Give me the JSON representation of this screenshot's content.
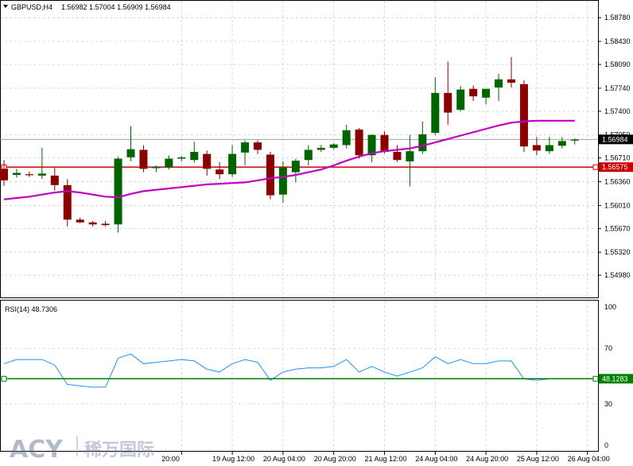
{
  "header": {
    "symbol": "GBPUSD,H4",
    "ohlc": "1.56982 1.57004 1.56909 1.56984"
  },
  "logo": {
    "brand": "ACY",
    "chinese": "稀万国际"
  },
  "colors": {
    "bull": "#006400",
    "bear": "#8b0000",
    "ma": "#c000c0",
    "rsi": "#1e90ff",
    "hline": "#cc0000",
    "rsi_level": "#008000",
    "grid": "#c8c8c8"
  },
  "chart_data": [
    {
      "type": "candlestick",
      "title": "GBPUSD,H4",
      "ylim": [
        1.547,
        1.589
      ],
      "y_ticks": [
        "1.58780",
        "1.58430",
        "1.58090",
        "1.57740",
        "1.57400",
        "1.57050",
        "1.56710",
        "1.56360",
        "1.56010",
        "1.55670",
        "1.55320",
        "1.54980"
      ],
      "x_ticks": [
        {
          "i": 14,
          "label": "20:00"
        },
        {
          "i": 18,
          "label": "19 Aug 12:00"
        },
        {
          "i": 22,
          "label": "20 Aug 04:00"
        },
        {
          "i": 26,
          "label": "20 Aug 20:00"
        },
        {
          "i": 30,
          "label": "21 Aug 12:00"
        },
        {
          "i": 34,
          "label": "24 Aug 04:00"
        },
        {
          "i": 38,
          "label": "24 Aug 20:00"
        },
        {
          "i": 42,
          "label": "25 Aug 12:00"
        },
        {
          "i": 46,
          "label": "26 Aug 04:00"
        }
      ],
      "current_price": "1.56984",
      "current_price_value": 1.56984,
      "hline_label": "1.56575",
      "hline_value": 1.56575,
      "candles": [
        {
          "o": 1.5655,
          "h": 1.5668,
          "l": 1.563,
          "c": 1.5638
        },
        {
          "o": 1.5646,
          "h": 1.5655,
          "l": 1.5642,
          "c": 1.5649
        },
        {
          "o": 1.5647,
          "h": 1.5651,
          "l": 1.5643,
          "c": 1.5646
        },
        {
          "o": 1.5645,
          "h": 1.5686,
          "l": 1.564,
          "c": 1.5648
        },
        {
          "o": 1.5645,
          "h": 1.5657,
          "l": 1.5623,
          "c": 1.5631
        },
        {
          "o": 1.5631,
          "h": 1.564,
          "l": 1.557,
          "c": 1.558
        },
        {
          "o": 1.558,
          "h": 1.5583,
          "l": 1.5575,
          "c": 1.5576
        },
        {
          "o": 1.5576,
          "h": 1.5578,
          "l": 1.557,
          "c": 1.5573
        },
        {
          "o": 1.5574,
          "h": 1.5578,
          "l": 1.557,
          "c": 1.5572
        },
        {
          "o": 1.5573,
          "h": 1.5673,
          "l": 1.5561,
          "c": 1.567
        },
        {
          "o": 1.5672,
          "h": 1.5718,
          "l": 1.5666,
          "c": 1.5684
        },
        {
          "o": 1.5683,
          "h": 1.569,
          "l": 1.565,
          "c": 1.5655
        },
        {
          "o": 1.5656,
          "h": 1.566,
          "l": 1.565,
          "c": 1.5658
        },
        {
          "o": 1.5657,
          "h": 1.5675,
          "l": 1.5654,
          "c": 1.567
        },
        {
          "o": 1.567,
          "h": 1.5674,
          "l": 1.5666,
          "c": 1.5672
        },
        {
          "o": 1.5668,
          "h": 1.5695,
          "l": 1.5664,
          "c": 1.568
        },
        {
          "o": 1.5677,
          "h": 1.5682,
          "l": 1.5645,
          "c": 1.5655
        },
        {
          "o": 1.5654,
          "h": 1.5665,
          "l": 1.564,
          "c": 1.5647
        },
        {
          "o": 1.5647,
          "h": 1.569,
          "l": 1.5643,
          "c": 1.5677
        },
        {
          "o": 1.5679,
          "h": 1.5697,
          "l": 1.566,
          "c": 1.5694
        },
        {
          "o": 1.5694,
          "h": 1.5697,
          "l": 1.5677,
          "c": 1.5683
        },
        {
          "o": 1.5676,
          "h": 1.568,
          "l": 1.561,
          "c": 1.5616
        },
        {
          "o": 1.5617,
          "h": 1.5666,
          "l": 1.5605,
          "c": 1.5657
        },
        {
          "o": 1.565,
          "h": 1.567,
          "l": 1.5635,
          "c": 1.5667
        },
        {
          "o": 1.5668,
          "h": 1.569,
          "l": 1.566,
          "c": 1.5683
        },
        {
          "o": 1.5683,
          "h": 1.569,
          "l": 1.568,
          "c": 1.5686
        },
        {
          "o": 1.5686,
          "h": 1.5693,
          "l": 1.5684,
          "c": 1.5691
        },
        {
          "o": 1.569,
          "h": 1.572,
          "l": 1.5685,
          "c": 1.5712
        },
        {
          "o": 1.5713,
          "h": 1.5715,
          "l": 1.567,
          "c": 1.5675
        },
        {
          "o": 1.5675,
          "h": 1.5706,
          "l": 1.5665,
          "c": 1.5705
        },
        {
          "o": 1.5705,
          "h": 1.571,
          "l": 1.5678,
          "c": 1.568
        },
        {
          "o": 1.568,
          "h": 1.569,
          "l": 1.5665,
          "c": 1.5668
        },
        {
          "o": 1.5666,
          "h": 1.5705,
          "l": 1.5629,
          "c": 1.5681
        },
        {
          "o": 1.5681,
          "h": 1.5725,
          "l": 1.5677,
          "c": 1.5706
        },
        {
          "o": 1.5708,
          "h": 1.579,
          "l": 1.5705,
          "c": 1.5767
        },
        {
          "o": 1.5767,
          "h": 1.5813,
          "l": 1.572,
          "c": 1.5738
        },
        {
          "o": 1.5742,
          "h": 1.5777,
          "l": 1.574,
          "c": 1.5772
        },
        {
          "o": 1.5773,
          "h": 1.5778,
          "l": 1.5755,
          "c": 1.5762
        },
        {
          "o": 1.576,
          "h": 1.5772,
          "l": 1.575,
          "c": 1.5773
        },
        {
          "o": 1.5775,
          "h": 1.5795,
          "l": 1.5755,
          "c": 1.5787
        },
        {
          "o": 1.5787,
          "h": 1.582,
          "l": 1.5775,
          "c": 1.5782
        },
        {
          "o": 1.578,
          "h": 1.5786,
          "l": 1.568,
          "c": 1.5688
        },
        {
          "o": 1.569,
          "h": 1.5702,
          "l": 1.5675,
          "c": 1.5682
        },
        {
          "o": 1.5681,
          "h": 1.5702,
          "l": 1.5677,
          "c": 1.569
        },
        {
          "o": 1.5689,
          "h": 1.5702,
          "l": 1.5685,
          "c": 1.5696
        },
        {
          "o": 1.5698,
          "h": 1.57,
          "l": 1.5691,
          "c": 1.5698
        }
      ],
      "moving_average": [
        1.561,
        1.5612,
        1.5614,
        1.5617,
        1.562,
        1.5622,
        1.562,
        1.5617,
        1.5614,
        1.5613,
        1.5618,
        1.5622,
        1.5624,
        1.5626,
        1.5628,
        1.563,
        1.5632,
        1.5633,
        1.5634,
        1.5635,
        1.5638,
        1.5641,
        1.5643,
        1.5646,
        1.565,
        1.5654,
        1.566,
        1.5667,
        1.5673,
        1.5678,
        1.5681,
        1.5683,
        1.5685,
        1.5689,
        1.5694,
        1.5699,
        1.5704,
        1.5709,
        1.5714,
        1.5719,
        1.5723,
        1.5725,
        1.5726,
        1.5726,
        1.5726,
        1.5726
      ]
    },
    {
      "type": "line",
      "title": "RSI(14) 48.7306",
      "ylim": [
        0,
        100
      ],
      "y_ticks": [
        "100",
        "70",
        "30",
        "0"
      ],
      "level_label": "48.1283",
      "level_value": 48.1283,
      "series": [
        {
          "values": [
            59,
            62,
            62,
            62,
            58,
            44,
            43,
            42,
            42,
            63,
            66,
            59,
            60,
            61,
            62,
            61,
            55,
            53,
            59,
            62,
            60,
            47,
            53,
            55,
            56,
            56,
            57,
            62,
            53,
            57,
            53,
            50,
            53,
            56,
            64,
            59,
            62,
            59,
            59,
            61,
            61,
            48,
            47,
            48,
            48,
            48
          ]
        }
      ]
    }
  ]
}
